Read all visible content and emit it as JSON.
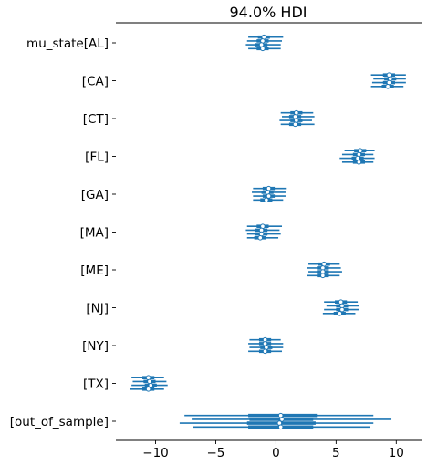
{
  "chart_data": {
    "type": "forest",
    "title": "94.0% HDI",
    "xlabel": "",
    "ylabel": "",
    "xlim": [
      -13.3,
      12.1
    ],
    "xticks": [
      -10,
      -5,
      0,
      5,
      10
    ],
    "xtick_labels": [
      "−10",
      "−5",
      "0",
      "5",
      "10"
    ],
    "grid": false,
    "series_color": "#1f77b4",
    "categories": [
      "mu_state[AL]",
      "[CA]",
      "[CT]",
      "[FL]",
      "[GA]",
      "[MA]",
      "[ME]",
      "[NJ]",
      "[NY]",
      "[TX]",
      "[out_of_sample]"
    ],
    "chains": [
      [
        {
          "mean": -1.0,
          "hdi_low": -2.3,
          "hdi_high": 0.6,
          "iqr_low": -1.5,
          "iqr_high": -0.5
        },
        {
          "mean": -1.1,
          "hdi_low": -2.4,
          "hdi_high": 0.5,
          "iqr_low": -1.6,
          "iqr_high": -0.6
        },
        {
          "mean": -1.2,
          "hdi_low": -2.5,
          "hdi_high": 0.4,
          "iqr_low": -1.7,
          "iqr_high": -0.7
        },
        {
          "mean": -1.1,
          "hdi_low": -2.3,
          "hdi_high": 0.4,
          "iqr_low": -1.6,
          "iqr_high": -0.6
        }
      ],
      [
        {
          "mean": 9.4,
          "hdi_low": 7.9,
          "hdi_high": 10.8,
          "iqr_low": 8.9,
          "iqr_high": 9.9
        },
        {
          "mean": 9.5,
          "hdi_low": 8.1,
          "hdi_high": 10.8,
          "iqr_low": 9.0,
          "iqr_high": 10.0
        },
        {
          "mean": 9.4,
          "hdi_low": 8.0,
          "hdi_high": 10.8,
          "iqr_low": 8.9,
          "iqr_high": 9.9
        },
        {
          "mean": 9.3,
          "hdi_low": 7.9,
          "hdi_high": 10.6,
          "iqr_low": 8.8,
          "iqr_high": 9.8
        }
      ],
      [
        {
          "mean": 1.7,
          "hdi_low": 0.4,
          "hdi_high": 3.1,
          "iqr_low": 1.2,
          "iqr_high": 2.2
        },
        {
          "mean": 1.6,
          "hdi_low": 0.5,
          "hdi_high": 3.2,
          "iqr_low": 1.1,
          "iqr_high": 2.1
        },
        {
          "mean": 1.7,
          "hdi_low": 0.3,
          "hdi_high": 3.0,
          "iqr_low": 1.2,
          "iqr_high": 2.2
        },
        {
          "mean": 1.6,
          "hdi_low": 0.4,
          "hdi_high": 3.2,
          "iqr_low": 1.1,
          "iqr_high": 2.1
        }
      ],
      [
        {
          "mean": 7.0,
          "hdi_low": 5.7,
          "hdi_high": 8.2,
          "iqr_low": 6.5,
          "iqr_high": 7.5
        },
        {
          "mean": 6.9,
          "hdi_low": 5.5,
          "hdi_high": 8.1,
          "iqr_low": 6.4,
          "iqr_high": 7.4
        },
        {
          "mean": 6.8,
          "hdi_low": 5.3,
          "hdi_high": 8.2,
          "iqr_low": 6.3,
          "iqr_high": 7.3
        },
        {
          "mean": 6.9,
          "hdi_low": 5.5,
          "hdi_high": 8.1,
          "iqr_low": 6.4,
          "iqr_high": 7.4
        }
      ],
      [
        {
          "mean": -0.6,
          "hdi_low": -1.9,
          "hdi_high": 0.9,
          "iqr_low": -1.1,
          "iqr_high": -0.1
        },
        {
          "mean": -0.7,
          "hdi_low": -2.0,
          "hdi_high": 0.8,
          "iqr_low": -1.2,
          "iqr_high": -0.2
        },
        {
          "mean": -0.6,
          "hdi_low": -1.9,
          "hdi_high": 0.8,
          "iqr_low": -1.1,
          "iqr_high": -0.1
        },
        {
          "mean": -0.8,
          "hdi_low": -1.9,
          "hdi_high": 0.6,
          "iqr_low": -1.3,
          "iqr_high": -0.3
        }
      ],
      [
        {
          "mean": -1.1,
          "hdi_low": -2.4,
          "hdi_high": 0.5,
          "iqr_low": -1.6,
          "iqr_high": -0.6
        },
        {
          "mean": -1.2,
          "hdi_low": -2.5,
          "hdi_high": 0.3,
          "iqr_low": -1.7,
          "iqr_high": -0.7
        },
        {
          "mean": -1.2,
          "hdi_low": -2.4,
          "hdi_high": 0.4,
          "iqr_low": -1.7,
          "iqr_high": -0.7
        },
        {
          "mean": -1.3,
          "hdi_low": -2.4,
          "hdi_high": 0.2,
          "iqr_low": -1.8,
          "iqr_high": -0.8
        }
      ],
      [
        {
          "mean": 4.0,
          "hdi_low": 2.7,
          "hdi_high": 5.3,
          "iqr_low": 3.5,
          "iqr_high": 4.5
        },
        {
          "mean": 3.9,
          "hdi_low": 2.6,
          "hdi_high": 5.4,
          "iqr_low": 3.4,
          "iqr_high": 4.4
        },
        {
          "mean": 3.9,
          "hdi_low": 2.7,
          "hdi_high": 5.5,
          "iqr_low": 3.4,
          "iqr_high": 4.4
        },
        {
          "mean": 3.9,
          "hdi_low": 2.6,
          "hdi_high": 5.3,
          "iqr_low": 3.4,
          "iqr_high": 4.4
        }
      ],
      [
        {
          "mean": 5.4,
          "hdi_low": 4.0,
          "hdi_high": 6.8,
          "iqr_low": 4.9,
          "iqr_high": 5.9
        },
        {
          "mean": 5.5,
          "hdi_low": 4.2,
          "hdi_high": 6.9,
          "iqr_low": 5.0,
          "iqr_high": 6.0
        },
        {
          "mean": 5.5,
          "hdi_low": 4.0,
          "hdi_high": 6.9,
          "iqr_low": 5.0,
          "iqr_high": 6.0
        },
        {
          "mean": 5.3,
          "hdi_low": 3.9,
          "hdi_high": 6.6,
          "iqr_low": 4.8,
          "iqr_high": 5.8
        }
      ],
      [
        {
          "mean": -0.9,
          "hdi_low": -2.2,
          "hdi_high": 0.4,
          "iqr_low": -1.4,
          "iqr_high": -0.4
        },
        {
          "mean": -0.9,
          "hdi_low": -2.3,
          "hdi_high": 0.6,
          "iqr_low": -1.4,
          "iqr_high": -0.4
        },
        {
          "mean": -0.8,
          "hdi_low": -2.2,
          "hdi_high": 0.6,
          "iqr_low": -1.3,
          "iqr_high": -0.3
        },
        {
          "mean": -0.9,
          "hdi_low": -2.3,
          "hdi_high": 0.5,
          "iqr_low": -1.4,
          "iqr_high": -0.4
        }
      ],
      [
        {
          "mean": -10.6,
          "hdi_low": -12.0,
          "hdi_high": -9.3,
          "iqr_low": -11.1,
          "iqr_high": -10.1
        },
        {
          "mean": -10.5,
          "hdi_low": -11.9,
          "hdi_high": -9.1,
          "iqr_low": -11.0,
          "iqr_high": -10.0
        },
        {
          "mean": -10.4,
          "hdi_low": -12.0,
          "hdi_high": -9.0,
          "iqr_low": -10.9,
          "iqr_high": -9.9
        },
        {
          "mean": -10.6,
          "hdi_low": -12.1,
          "hdi_high": -9.3,
          "iqr_low": -11.1,
          "iqr_high": -10.1
        }
      ],
      [
        {
          "mean": 0.4,
          "hdi_low": -7.6,
          "hdi_high": 8.1,
          "iqr_low": -2.3,
          "iqr_high": 3.4
        },
        {
          "mean": 0.5,
          "hdi_low": -7.0,
          "hdi_high": 9.6,
          "iqr_low": -2.2,
          "iqr_high": 3.1
        },
        {
          "mean": 0.3,
          "hdi_low": -8.0,
          "hdi_high": 8.1,
          "iqr_low": -2.4,
          "iqr_high": 3.3
        },
        {
          "mean": 0.4,
          "hdi_low": -6.9,
          "hdi_high": 7.8,
          "iqr_low": -2.3,
          "iqr_high": 3.1
        }
      ]
    ]
  }
}
